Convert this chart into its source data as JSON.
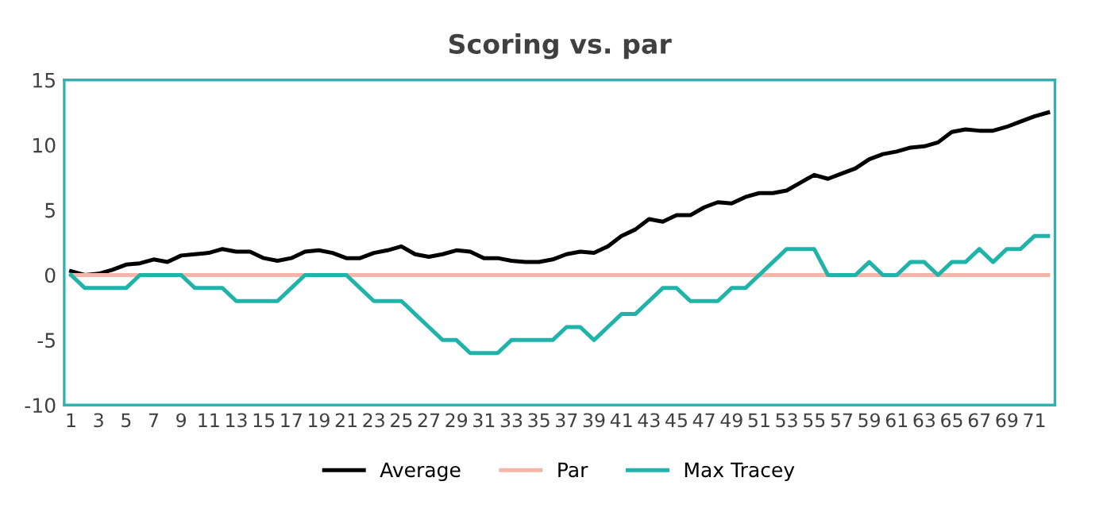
{
  "chart_data": {
    "type": "line",
    "title": "Scoring vs. par",
    "categories": [
      "1",
      null,
      "3",
      null,
      "5",
      null,
      "7",
      null,
      "9",
      null,
      "11",
      null,
      "13",
      null,
      "15",
      null,
      "17",
      null,
      "19",
      null,
      "21",
      null,
      "23",
      null,
      "25",
      null,
      "27",
      null,
      "29",
      null,
      "31",
      null,
      "33",
      null,
      "35",
      null,
      "37",
      null,
      "39",
      null,
      "41",
      null,
      "43",
      null,
      "45",
      null,
      "47",
      null,
      "49",
      null,
      "51",
      null,
      "53",
      null,
      "55",
      null,
      "57",
      null,
      "59",
      null,
      "61",
      null,
      "63",
      null,
      "65",
      null,
      "67",
      null,
      "69",
      null,
      "71",
      null
    ],
    "series": [
      {
        "name": "Average",
        "color": "#000000",
        "values": [
          0.3,
          0,
          0.1,
          0.4,
          0.8,
          0.9,
          1.2,
          1.0,
          1.5,
          1.6,
          1.7,
          2.0,
          1.8,
          1.8,
          1.3,
          1.1,
          1.3,
          1.8,
          1.9,
          1.7,
          1.3,
          1.3,
          1.7,
          1.9,
          2.2,
          1.6,
          1.4,
          1.6,
          1.9,
          1.8,
          1.3,
          1.3,
          1.1,
          1.0,
          1.0,
          1.2,
          1.6,
          1.8,
          1.7,
          2.2,
          3.0,
          3.5,
          4.3,
          4.1,
          4.6,
          4.6,
          5.2,
          5.6,
          5.5,
          6.0,
          6.3,
          6.3,
          6.5,
          7.1,
          7.7,
          7.4,
          7.8,
          8.2,
          8.9,
          9.3,
          9.5,
          9.8,
          9.9,
          10.2,
          11.0,
          11.2,
          11.1,
          11.1,
          11.4,
          11.8,
          12.2,
          12.5
        ]
      },
      {
        "name": "Par",
        "color": "#f4b6a8",
        "values": [
          0,
          0,
          0,
          0,
          0,
          0,
          0,
          0,
          0,
          0,
          0,
          0,
          0,
          0,
          0,
          0,
          0,
          0,
          0,
          0,
          0,
          0,
          0,
          0,
          0,
          0,
          0,
          0,
          0,
          0,
          0,
          0,
          0,
          0,
          0,
          0,
          0,
          0,
          0,
          0,
          0,
          0,
          0,
          0,
          0,
          0,
          0,
          0,
          0,
          0,
          0,
          0,
          0,
          0,
          0,
          0,
          0,
          0,
          0,
          0,
          0,
          0,
          0,
          0,
          0,
          0,
          0,
          0,
          0,
          0,
          0,
          0
        ]
      },
      {
        "name": "Max Tracey",
        "color": "#1fb3aa",
        "values": [
          0,
          -1,
          -1,
          -1,
          -1,
          0,
          0,
          0,
          0,
          -1,
          -1,
          -1,
          -2,
          -2,
          -2,
          -2,
          -1,
          0,
          0,
          0,
          0,
          -1,
          -2,
          -2,
          -2,
          -3,
          -4,
          -5,
          -5,
          -6,
          -6,
          -6,
          -5,
          -5,
          -5,
          -5,
          -4,
          -4,
          -5,
          -4,
          -3,
          -3,
          -2,
          -1,
          -1,
          -2,
          -2,
          -2,
          -1,
          -1,
          0,
          1,
          2,
          2,
          2,
          0,
          0,
          0,
          1,
          0,
          0,
          1,
          1,
          0,
          1,
          1,
          2,
          1,
          2,
          2,
          3,
          3
        ]
      }
    ],
    "ylim": [
      -10,
      15
    ],
    "yticks": [
      -10,
      -5,
      0,
      5,
      10,
      15
    ],
    "grid": false,
    "legend": "bottom",
    "marker": "none",
    "line_style": "solid"
  }
}
